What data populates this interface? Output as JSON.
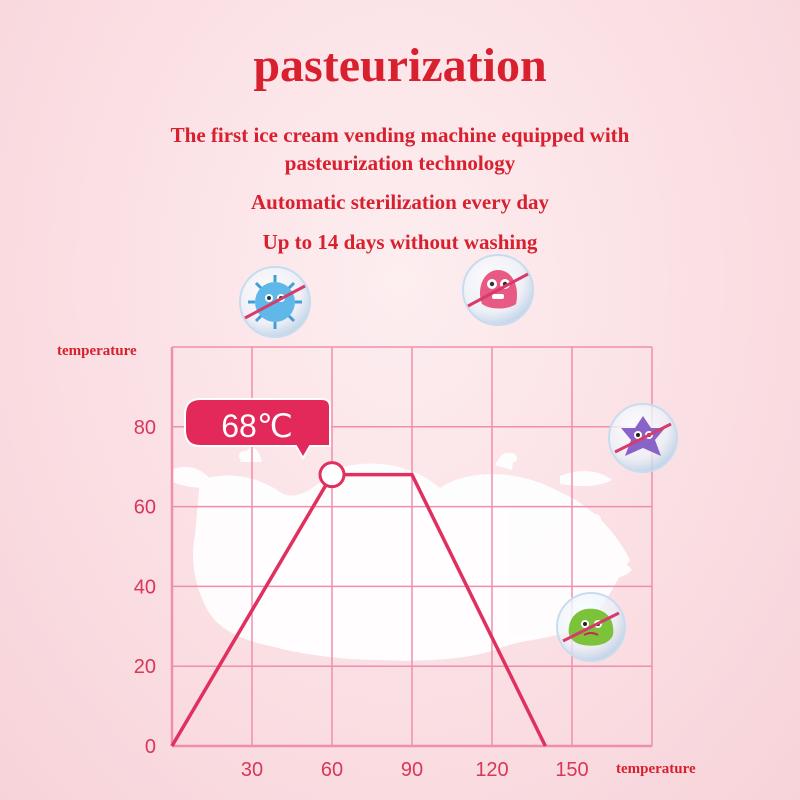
{
  "header": {
    "title": "pasteurization",
    "line1": "The first ice cream vending machine equipped with",
    "line2": "pasteurization technology",
    "line3": "Automatic sterilization every day",
    "line4": "Up to 14 days without washing"
  },
  "colors": {
    "text_red": "#d8202e",
    "line_pink": "#e0305f",
    "grid_pink": "#f08fac",
    "callout_bg": "#e2295a"
  },
  "icons": [
    "no-bacteria-blue-icon",
    "no-bacteria-red-icon",
    "no-bacteria-purple-icon",
    "no-bacteria-green-icon",
    "milk-splash-graphic"
  ],
  "chart_data": {
    "type": "line",
    "title": "",
    "xlabel": "temperature",
    "ylabel": "temperature",
    "x_ticks": [
      30,
      60,
      90,
      120,
      150
    ],
    "y_ticks": [
      0,
      20,
      40,
      60,
      80
    ],
    "xlim": [
      0,
      180
    ],
    "ylim": [
      0,
      100
    ],
    "grid": true,
    "series": [
      {
        "x": [
          0,
          60,
          90,
          140
        ],
        "y": [
          0,
          68,
          68,
          0
        ]
      }
    ],
    "annotations": [
      {
        "text": "68℃",
        "x": 60,
        "y": 68
      }
    ]
  }
}
